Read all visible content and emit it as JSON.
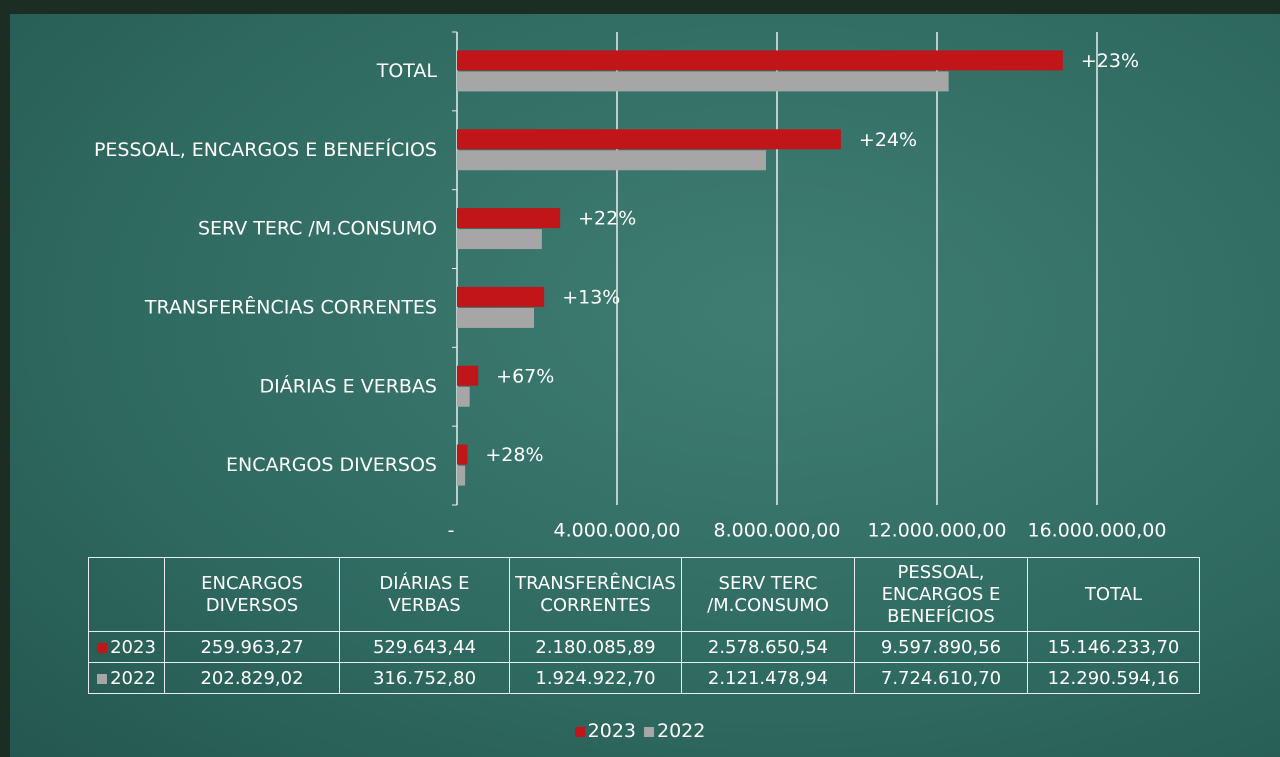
{
  "chart_data": {
    "type": "hbar",
    "categories": [
      "ENCARGOS DIVERSOS",
      "DIÁRIAS E VERBAS",
      "TRANSFERÊNCIAS CORRENTES",
      "SERV TERC /M.CONSUMO",
      "PESSOAL, ENCARGOS E BENEFÍCIOS",
      "TOTAL"
    ],
    "series": [
      {
        "name": "2023",
        "color": "#c0161a",
        "values": [
          259963.27,
          529643.44,
          2180085.89,
          2578650.54,
          9597890.56,
          15146233.7
        ],
        "value_labels": [
          "259.963,27",
          "529.643,44",
          "2.180.085,89",
          "2.578.650,54",
          "9.597.890,56",
          "15.146.233,70"
        ]
      },
      {
        "name": "2022",
        "color": "#a6a6a6",
        "values": [
          202829.02,
          316752.8,
          1924922.7,
          2121478.94,
          7724610.7,
          12290594.16
        ],
        "value_labels": [
          "202.829,02",
          "316.752,80",
          "1.924.922,70",
          "2.121.478,94",
          "7.724.610,70",
          "12.290.594,16"
        ]
      }
    ],
    "change_labels": [
      "+28%",
      "+67%",
      "+13%",
      "+22%",
      "+24%",
      "+23%"
    ],
    "xlim": [
      0,
      16000000
    ],
    "xticks": [
      {
        "value": 0,
        "label": "-"
      },
      {
        "value": 4000000,
        "label": "4.000.000,00"
      },
      {
        "value": 8000000,
        "label": "8.000.000,00"
      },
      {
        "value": 12000000,
        "label": "12.000.000,00"
      },
      {
        "value": 16000000,
        "label": "16.000.000,00"
      }
    ],
    "grid": true,
    "legend": "bottom"
  }
}
